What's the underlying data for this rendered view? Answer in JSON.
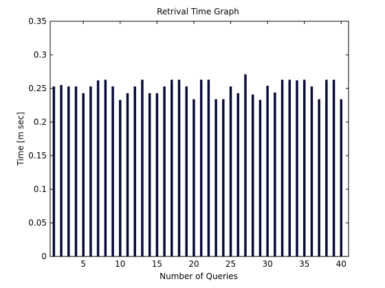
{
  "chart_data": {
    "type": "bar",
    "title": "Retrival Time   Graph",
    "xlabel": "Number of  Queries",
    "ylabel": "Time [m sec]",
    "x": [
      1,
      2,
      3,
      4,
      5,
      6,
      7,
      8,
      9,
      10,
      11,
      12,
      13,
      14,
      15,
      16,
      17,
      18,
      19,
      20,
      21,
      22,
      23,
      24,
      25,
      26,
      27,
      28,
      29,
      30,
      31,
      32,
      33,
      34,
      35,
      36,
      37,
      38,
      39,
      40
    ],
    "values": [
      0.253,
      0.255,
      0.253,
      0.253,
      0.243,
      0.253,
      0.262,
      0.263,
      0.253,
      0.233,
      0.243,
      0.253,
      0.263,
      0.243,
      0.243,
      0.253,
      0.263,
      0.263,
      0.253,
      0.234,
      0.263,
      0.263,
      0.234,
      0.234,
      0.253,
      0.243,
      0.271,
      0.241,
      0.233,
      0.254,
      0.244,
      0.263,
      0.263,
      0.262,
      0.263,
      0.253,
      0.234,
      0.263,
      0.263,
      0.234
    ],
    "xlim": [
      0.5,
      41
    ],
    "ylim": [
      0,
      0.35
    ],
    "xticks": [
      5,
      10,
      15,
      20,
      25,
      30,
      35,
      40
    ],
    "yticks": [
      0,
      0.05,
      0.1,
      0.15,
      0.2,
      0.25,
      0.3,
      0.35
    ],
    "ytick_labels": [
      "0",
      "0.05",
      "0.1",
      "0.15",
      "0.2",
      "0.25",
      "0.3",
      "0.35"
    ],
    "grid": false,
    "bar_color": "#0a0a3a"
  }
}
